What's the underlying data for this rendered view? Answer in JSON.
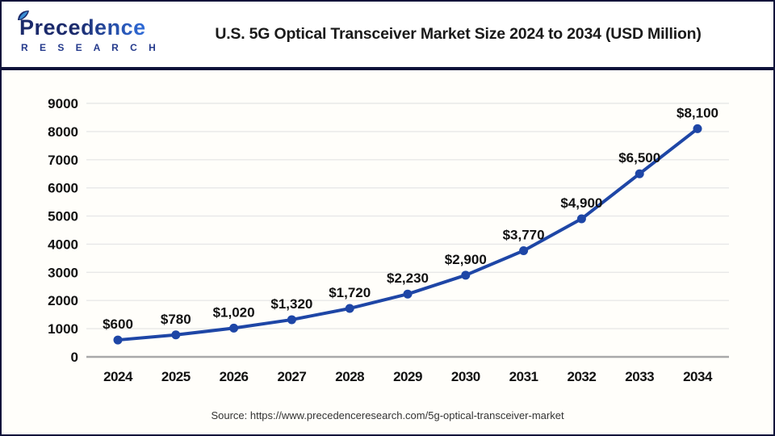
{
  "header": {
    "logo": {
      "name": "Precedence",
      "subtitle": "R E S E A R C H",
      "leaf_icon": "leaf-icon"
    },
    "title": "U.S. 5G Optical Transceiver Market Size 2024 to 2034 (USD Million)"
  },
  "chart_data": {
    "type": "line",
    "title": "U.S. 5G Optical Transceiver Market Size 2024 to 2034 (USD Million)",
    "categories": [
      "2024",
      "2025",
      "2026",
      "2027",
      "2028",
      "2029",
      "2030",
      "2031",
      "2032",
      "2033",
      "2034"
    ],
    "values": [
      600,
      780,
      1020,
      1320,
      1720,
      2230,
      2900,
      3770,
      4900,
      6500,
      8100
    ],
    "point_labels": [
      "$600",
      "$780",
      "$1,020",
      "$1,320",
      "$1,720",
      "$2,230",
      "$2,900",
      "$3,770",
      "$4,900",
      "$6,500",
      "$8,100"
    ],
    "xlabel": "",
    "ylabel": "",
    "ylim": [
      0,
      9000
    ],
    "ytick_step": 1000,
    "grid": true,
    "legend_position": "none",
    "line_color": "#1e46a6",
    "marker": "circle",
    "marker_color": "#1e46a6"
  },
  "footer": {
    "source": "Source: https://www.precedenceresearch.com/5g-optical-transceiver-market"
  },
  "colors": {
    "page_border": "#10143a",
    "separator_navy": "#0e123a",
    "header_bg": "#ffffff",
    "chart_bg": "#fffefa",
    "gridline": "#e8e8e8",
    "zero_axis": "#a9a9a9",
    "logo_navy": "#1b2a6b",
    "logo_blue": "#2f6bd8",
    "text_dark": "#111111",
    "source_gray": "#333333"
  }
}
